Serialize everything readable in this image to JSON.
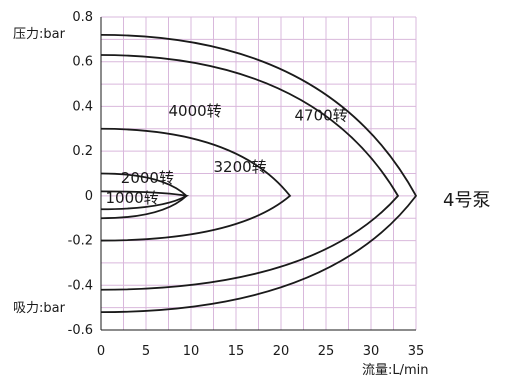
{
  "chart_data": {
    "type": "line",
    "title": "",
    "xlabel": "流量:L/min",
    "ylabel_top": "压力:bar",
    "ylabel_bottom": "吸力:bar",
    "side_label": "4号泵",
    "xlim": [
      0,
      35
    ],
    "ylim": [
      -0.6,
      0.8
    ],
    "x_ticks": [
      "0",
      "5",
      "10",
      "15",
      "20",
      "25",
      "30",
      "35"
    ],
    "y_ticks": [
      "0.8",
      "0.6",
      "0.4",
      "0.2",
      "0",
      "-0.2",
      "-0.4",
      "-0.6"
    ],
    "grid": true,
    "series": [
      {
        "name": "1000转",
        "x": [
          0,
          9.5,
          0
        ],
        "y": [
          0.02,
          0.0,
          -0.06
        ]
      },
      {
        "name": "2000转",
        "x": [
          0,
          9.5,
          0
        ],
        "y": [
          0.1,
          0.0,
          -0.1
        ]
      },
      {
        "name": "3200转",
        "x": [
          0,
          21,
          0
        ],
        "y": [
          0.3,
          0.0,
          -0.2
        ]
      },
      {
        "name": "4000转",
        "x": [
          0,
          33,
          0
        ],
        "y": [
          0.63,
          0.0,
          -0.42
        ]
      },
      {
        "name": "4700转",
        "x": [
          0,
          35,
          0
        ],
        "y": [
          0.72,
          0.0,
          -0.52
        ]
      }
    ]
  }
}
